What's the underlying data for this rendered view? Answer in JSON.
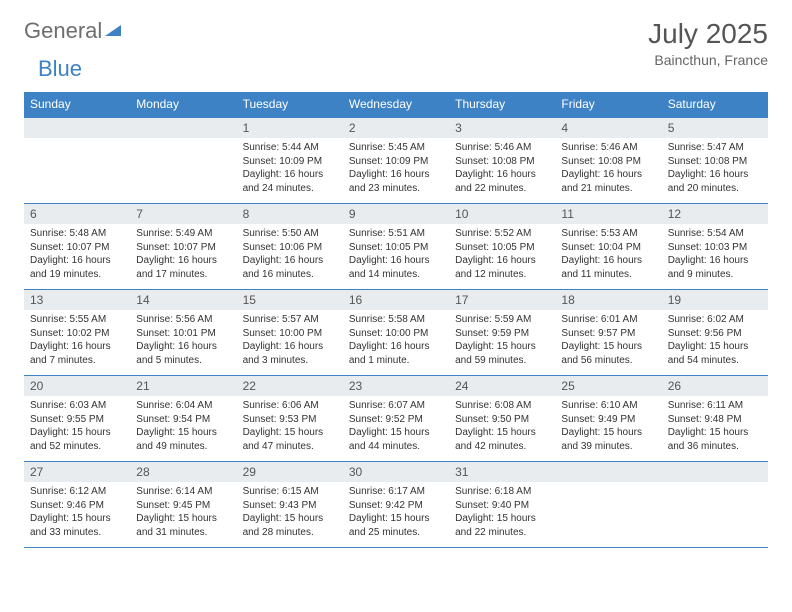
{
  "brand": {
    "part1": "General",
    "part2": "Blue"
  },
  "title": "July 2025",
  "location": "Baincthun, France",
  "colors": {
    "header_bg": "#3d82c4",
    "header_text": "#ffffff",
    "daynum_bg": "#e8ecef",
    "daynum_text": "#555555",
    "body_text": "#333333",
    "border": "#3d82c4",
    "logo_gray": "#6e6e6e",
    "logo_blue": "#3d82c4"
  },
  "fonts": {
    "title_size": 28,
    "location_size": 14,
    "header_size": 12,
    "daynum_size": 12,
    "cell_size": 10
  },
  "day_headers": [
    "Sunday",
    "Monday",
    "Tuesday",
    "Wednesday",
    "Thursday",
    "Friday",
    "Saturday"
  ],
  "weeks": [
    {
      "nums": [
        "",
        "",
        "1",
        "2",
        "3",
        "4",
        "5"
      ],
      "cells": [
        {},
        {},
        {
          "sunrise": "Sunrise: 5:44 AM",
          "sunset": "Sunset: 10:09 PM",
          "daylight1": "Daylight: 16 hours",
          "daylight2": "and 24 minutes."
        },
        {
          "sunrise": "Sunrise: 5:45 AM",
          "sunset": "Sunset: 10:09 PM",
          "daylight1": "Daylight: 16 hours",
          "daylight2": "and 23 minutes."
        },
        {
          "sunrise": "Sunrise: 5:46 AM",
          "sunset": "Sunset: 10:08 PM",
          "daylight1": "Daylight: 16 hours",
          "daylight2": "and 22 minutes."
        },
        {
          "sunrise": "Sunrise: 5:46 AM",
          "sunset": "Sunset: 10:08 PM",
          "daylight1": "Daylight: 16 hours",
          "daylight2": "and 21 minutes."
        },
        {
          "sunrise": "Sunrise: 5:47 AM",
          "sunset": "Sunset: 10:08 PM",
          "daylight1": "Daylight: 16 hours",
          "daylight2": "and 20 minutes."
        }
      ]
    },
    {
      "nums": [
        "6",
        "7",
        "8",
        "9",
        "10",
        "11",
        "12"
      ],
      "cells": [
        {
          "sunrise": "Sunrise: 5:48 AM",
          "sunset": "Sunset: 10:07 PM",
          "daylight1": "Daylight: 16 hours",
          "daylight2": "and 19 minutes."
        },
        {
          "sunrise": "Sunrise: 5:49 AM",
          "sunset": "Sunset: 10:07 PM",
          "daylight1": "Daylight: 16 hours",
          "daylight2": "and 17 minutes."
        },
        {
          "sunrise": "Sunrise: 5:50 AM",
          "sunset": "Sunset: 10:06 PM",
          "daylight1": "Daylight: 16 hours",
          "daylight2": "and 16 minutes."
        },
        {
          "sunrise": "Sunrise: 5:51 AM",
          "sunset": "Sunset: 10:05 PM",
          "daylight1": "Daylight: 16 hours",
          "daylight2": "and 14 minutes."
        },
        {
          "sunrise": "Sunrise: 5:52 AM",
          "sunset": "Sunset: 10:05 PM",
          "daylight1": "Daylight: 16 hours",
          "daylight2": "and 12 minutes."
        },
        {
          "sunrise": "Sunrise: 5:53 AM",
          "sunset": "Sunset: 10:04 PM",
          "daylight1": "Daylight: 16 hours",
          "daylight2": "and 11 minutes."
        },
        {
          "sunrise": "Sunrise: 5:54 AM",
          "sunset": "Sunset: 10:03 PM",
          "daylight1": "Daylight: 16 hours",
          "daylight2": "and 9 minutes."
        }
      ]
    },
    {
      "nums": [
        "13",
        "14",
        "15",
        "16",
        "17",
        "18",
        "19"
      ],
      "cells": [
        {
          "sunrise": "Sunrise: 5:55 AM",
          "sunset": "Sunset: 10:02 PM",
          "daylight1": "Daylight: 16 hours",
          "daylight2": "and 7 minutes."
        },
        {
          "sunrise": "Sunrise: 5:56 AM",
          "sunset": "Sunset: 10:01 PM",
          "daylight1": "Daylight: 16 hours",
          "daylight2": "and 5 minutes."
        },
        {
          "sunrise": "Sunrise: 5:57 AM",
          "sunset": "Sunset: 10:00 PM",
          "daylight1": "Daylight: 16 hours",
          "daylight2": "and 3 minutes."
        },
        {
          "sunrise": "Sunrise: 5:58 AM",
          "sunset": "Sunset: 10:00 PM",
          "daylight1": "Daylight: 16 hours",
          "daylight2": "and 1 minute."
        },
        {
          "sunrise": "Sunrise: 5:59 AM",
          "sunset": "Sunset: 9:59 PM",
          "daylight1": "Daylight: 15 hours",
          "daylight2": "and 59 minutes."
        },
        {
          "sunrise": "Sunrise: 6:01 AM",
          "sunset": "Sunset: 9:57 PM",
          "daylight1": "Daylight: 15 hours",
          "daylight2": "and 56 minutes."
        },
        {
          "sunrise": "Sunrise: 6:02 AM",
          "sunset": "Sunset: 9:56 PM",
          "daylight1": "Daylight: 15 hours",
          "daylight2": "and 54 minutes."
        }
      ]
    },
    {
      "nums": [
        "20",
        "21",
        "22",
        "23",
        "24",
        "25",
        "26"
      ],
      "cells": [
        {
          "sunrise": "Sunrise: 6:03 AM",
          "sunset": "Sunset: 9:55 PM",
          "daylight1": "Daylight: 15 hours",
          "daylight2": "and 52 minutes."
        },
        {
          "sunrise": "Sunrise: 6:04 AM",
          "sunset": "Sunset: 9:54 PM",
          "daylight1": "Daylight: 15 hours",
          "daylight2": "and 49 minutes."
        },
        {
          "sunrise": "Sunrise: 6:06 AM",
          "sunset": "Sunset: 9:53 PM",
          "daylight1": "Daylight: 15 hours",
          "daylight2": "and 47 minutes."
        },
        {
          "sunrise": "Sunrise: 6:07 AM",
          "sunset": "Sunset: 9:52 PM",
          "daylight1": "Daylight: 15 hours",
          "daylight2": "and 44 minutes."
        },
        {
          "sunrise": "Sunrise: 6:08 AM",
          "sunset": "Sunset: 9:50 PM",
          "daylight1": "Daylight: 15 hours",
          "daylight2": "and 42 minutes."
        },
        {
          "sunrise": "Sunrise: 6:10 AM",
          "sunset": "Sunset: 9:49 PM",
          "daylight1": "Daylight: 15 hours",
          "daylight2": "and 39 minutes."
        },
        {
          "sunrise": "Sunrise: 6:11 AM",
          "sunset": "Sunset: 9:48 PM",
          "daylight1": "Daylight: 15 hours",
          "daylight2": "and 36 minutes."
        }
      ]
    },
    {
      "nums": [
        "27",
        "28",
        "29",
        "30",
        "31",
        "",
        ""
      ],
      "cells": [
        {
          "sunrise": "Sunrise: 6:12 AM",
          "sunset": "Sunset: 9:46 PM",
          "daylight1": "Daylight: 15 hours",
          "daylight2": "and 33 minutes."
        },
        {
          "sunrise": "Sunrise: 6:14 AM",
          "sunset": "Sunset: 9:45 PM",
          "daylight1": "Daylight: 15 hours",
          "daylight2": "and 31 minutes."
        },
        {
          "sunrise": "Sunrise: 6:15 AM",
          "sunset": "Sunset: 9:43 PM",
          "daylight1": "Daylight: 15 hours",
          "daylight2": "and 28 minutes."
        },
        {
          "sunrise": "Sunrise: 6:17 AM",
          "sunset": "Sunset: 9:42 PM",
          "daylight1": "Daylight: 15 hours",
          "daylight2": "and 25 minutes."
        },
        {
          "sunrise": "Sunrise: 6:18 AM",
          "sunset": "Sunset: 9:40 PM",
          "daylight1": "Daylight: 15 hours",
          "daylight2": "and 22 minutes."
        },
        {},
        {}
      ]
    }
  ]
}
